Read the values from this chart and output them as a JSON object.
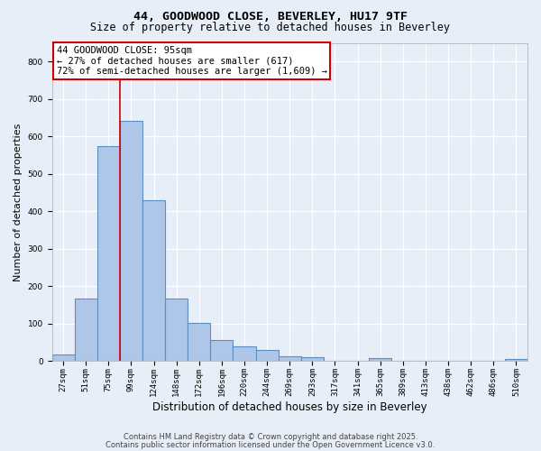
{
  "title1": "44, GOODWOOD CLOSE, BEVERLEY, HU17 9TF",
  "title2": "Size of property relative to detached houses in Beverley",
  "xlabel": "Distribution of detached houses by size in Beverley",
  "ylabel": "Number of detached properties",
  "bar_labels": [
    "27sqm",
    "51sqm",
    "75sqm",
    "99sqm",
    "124sqm",
    "148sqm",
    "172sqm",
    "196sqm",
    "220sqm",
    "244sqm",
    "269sqm",
    "293sqm",
    "317sqm",
    "341sqm",
    "365sqm",
    "389sqm",
    "413sqm",
    "438sqm",
    "462sqm",
    "486sqm",
    "510sqm"
  ],
  "bar_values": [
    17,
    168,
    575,
    642,
    430,
    168,
    103,
    57,
    40,
    30,
    13,
    11,
    0,
    0,
    9,
    0,
    0,
    0,
    0,
    0,
    7
  ],
  "bar_color": "#aec6e8",
  "bar_edgecolor": "#5a8fc0",
  "bar_linewidth": 0.8,
  "vline_index": 2.5,
  "vline_color": "#cc0000",
  "annotation_text": "44 GOODWOOD CLOSE: 95sqm\n← 27% of detached houses are smaller (617)\n72% of semi-detached houses are larger (1,609) →",
  "annotation_box_facecolor": "#ffffff",
  "annotation_box_edgecolor": "#cc0000",
  "annotation_fontsize": 7.5,
  "ylim": [
    0,
    850
  ],
  "yticks": [
    0,
    100,
    200,
    300,
    400,
    500,
    600,
    700,
    800
  ],
  "bg_color": "#e8eef8",
  "plot_bg_color": "#e8eef8",
  "footer1": "Contains HM Land Registry data © Crown copyright and database right 2025.",
  "footer2": "Contains public sector information licensed under the Open Government Licence v3.0.",
  "title_fontsize": 9.5,
  "subtitle_fontsize": 8.5,
  "ylabel_fontsize": 8,
  "xlabel_fontsize": 8.5,
  "tick_fontsize": 6.5,
  "footer_fontsize": 6.0,
  "grid_color": "#ffffff",
  "grid_linewidth": 0.8
}
